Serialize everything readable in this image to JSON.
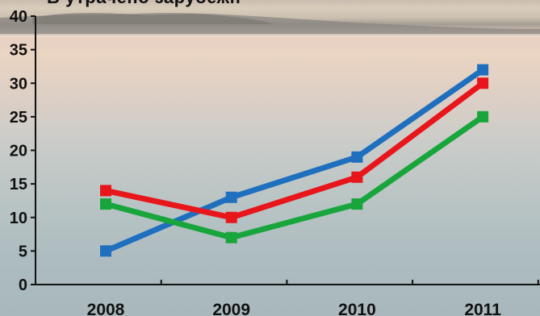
{
  "chart_data": {
    "type": "line",
    "title": "В утрачено зарубежн",
    "xlabel": "",
    "ylabel": "",
    "categories": [
      "2008",
      "2009",
      "2010",
      "2011"
    ],
    "ylim": [
      0,
      40
    ],
    "yticks": [
      0,
      5,
      10,
      15,
      20,
      25,
      30,
      35,
      40
    ],
    "grid": false,
    "series": [
      {
        "color": "#1f6fbf",
        "values": [
          5,
          13,
          19,
          32
        ]
      },
      {
        "color": "#e8151b",
        "values": [
          14,
          10,
          16,
          30
        ]
      },
      {
        "color": "#18a63c",
        "values": [
          12,
          7,
          12,
          25
        ]
      }
    ]
  }
}
